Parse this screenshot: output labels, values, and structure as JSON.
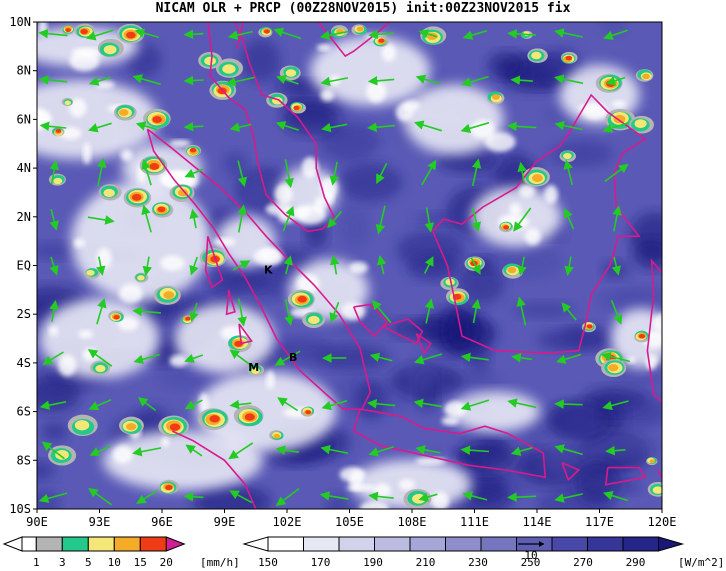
{
  "title": "NICAM OLR + PRCP (00Z28NOV2015) init:00Z23NOV2015 fix",
  "map": {
    "lon_range": [
      90,
      120
    ],
    "lat_range": [
      -10,
      10
    ],
    "lon_ticks": [
      "90E",
      "93E",
      "96E",
      "99E",
      "102E",
      "105E",
      "108E",
      "111E",
      "114E",
      "117E",
      "120E"
    ],
    "lat_ticks": [
      "10N",
      "8N",
      "6N",
      "4N",
      "2N",
      "EQ",
      "2S",
      "4S",
      "6S",
      "8S",
      "10S"
    ],
    "sites": [
      {
        "label": "K",
        "lon": 101.1,
        "lat": -0.2
      },
      {
        "label": "M",
        "lon": 100.4,
        "lat": -4.2
      },
      {
        "label": "B",
        "lon": 102.3,
        "lat": -3.8
      }
    ],
    "colors": {
      "coast": "#d81b8c",
      "wind": "#22cc22",
      "olr_low": "#ffffff",
      "olr_high": "#282a9a"
    }
  },
  "precip_colorbar": {
    "labels": [
      "1",
      "3",
      "5",
      "10",
      "15",
      "20"
    ],
    "unit": "[mm/h]",
    "colors": [
      "#b4b4b4",
      "#23c88a",
      "#f5e678",
      "#f5aa28",
      "#f03c14",
      "#d21e96"
    ]
  },
  "olr_colorbar": {
    "labels": [
      "150",
      "170",
      "190",
      "210",
      "230",
      "250",
      "270",
      "290"
    ],
    "unit": "[W/m^2]",
    "colors": [
      "#ffffff",
      "#e8e8f4",
      "#d2d2ec",
      "#bcbce2",
      "#a6a6d8",
      "#8e8ecc",
      "#7676c0",
      "#5e5eb4",
      "#4848a8",
      "#363699",
      "#25258a",
      "#181878"
    ],
    "reference_vector": "10"
  }
}
